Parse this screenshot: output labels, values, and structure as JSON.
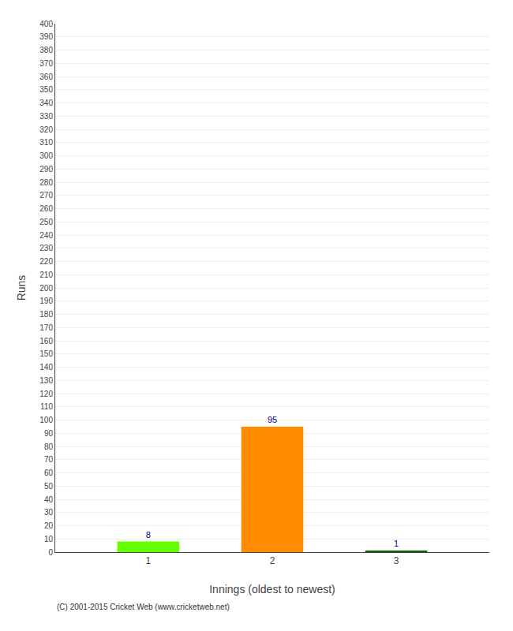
{
  "chart_data": {
    "type": "bar",
    "x": [
      1,
      2,
      3
    ],
    "values": [
      8,
      95,
      1
    ],
    "colors": [
      "#66ff00",
      "#ff8c00",
      "#006400"
    ],
    "xlabel": "Innings (oldest to newest)",
    "ylabel": "Runs",
    "xlim": [
      0.25,
      3.75
    ],
    "xticks": [
      1,
      2,
      3
    ],
    "ylim": [
      0,
      400
    ],
    "yticks": [
      0,
      10,
      20,
      30,
      40,
      50,
      60,
      70,
      80,
      90,
      100,
      110,
      120,
      130,
      140,
      150,
      160,
      170,
      180,
      190,
      200,
      210,
      220,
      230,
      240,
      250,
      260,
      270,
      280,
      290,
      300,
      310,
      320,
      330,
      340,
      350,
      360,
      370,
      380,
      390,
      400
    ],
    "grid": "y",
    "data_labels": true,
    "annotations": [
      "(C) 2001-2015 Cricket Web (www.cricketweb.net)"
    ]
  }
}
